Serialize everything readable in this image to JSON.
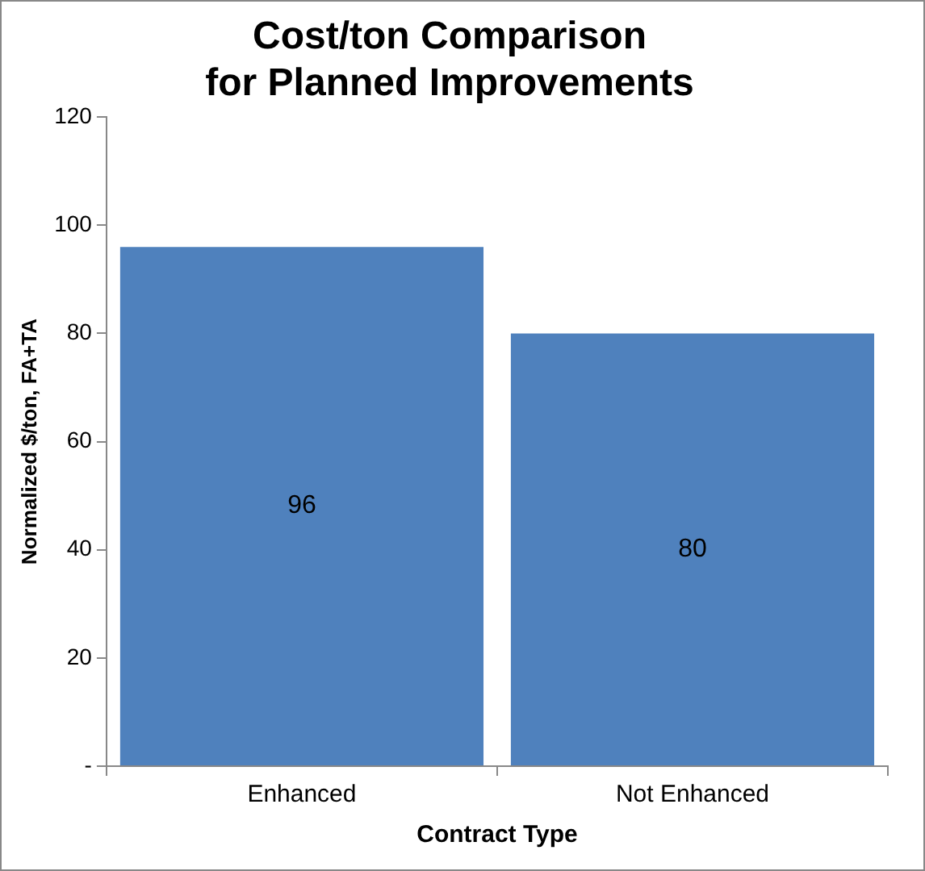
{
  "chart_data": {
    "type": "bar",
    "title": "Cost/ton Comparison\nfor Planned Improvements",
    "xlabel": "Contract Type",
    "ylabel": "Normalized $/ton, FA+TA",
    "categories": [
      "Enhanced",
      "Not Enhanced"
    ],
    "values": [
      96,
      80
    ],
    "color": "#4f81bd",
    "ylim": [
      0,
      120
    ],
    "yticks": [
      {
        "value": 0,
        "label": "-"
      },
      20,
      40,
      60,
      80,
      100,
      120
    ],
    "data_labels": true,
    "legend": false
  }
}
